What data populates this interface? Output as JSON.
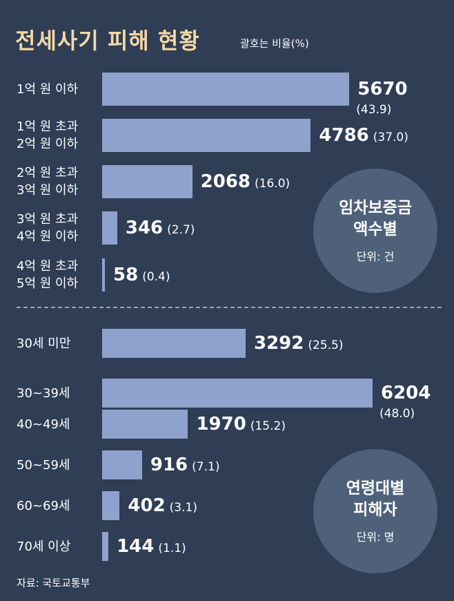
{
  "title": "전세사기 피해 현황",
  "subtitle": "괄호는 비율(%)",
  "source": "자료: 국토교통부",
  "circles": {
    "deposit": {
      "line1": "임차보증금",
      "line2": "액수별",
      "unit": "단위: 건"
    },
    "age": {
      "line1": "연령대별",
      "line2": "피해자",
      "unit": "단위: 명"
    }
  },
  "chart_data": [
    {
      "type": "bar",
      "orientation": "horizontal",
      "title": "임차보증금 액수별",
      "unit": "단위: 건",
      "categories": [
        [
          "1억 원 이하"
        ],
        [
          "1억 원 초과",
          "2억 원 이하"
        ],
        [
          "2억 원 초과",
          "3억 원 이하"
        ],
        [
          "3억 원 초과",
          "4억 원 이하"
        ],
        [
          "4억 원 초과",
          "5억 원 이하"
        ]
      ],
      "values": [
        5670,
        4786,
        2068,
        346,
        58
      ],
      "percent_labels": [
        "(43.9)",
        "(37.0)",
        "(16.0)",
        "(2.7)",
        "(0.4)"
      ]
    },
    {
      "type": "bar",
      "orientation": "horizontal",
      "title": "연령대별 피해자",
      "unit": "단위: 명",
      "categories": [
        [
          "30세 미만"
        ],
        [
          "30~39세"
        ],
        [
          "40~49세"
        ],
        [
          "50~59세"
        ],
        [
          "60~69세"
        ],
        [
          "70세 이상"
        ]
      ],
      "values": [
        3292,
        6204,
        1970,
        916,
        402,
        144
      ],
      "percent_labels": [
        "(25.5)",
        "(48.0)",
        "(15.2)",
        "(7.1)",
        "(3.1)",
        "(1.1)"
      ]
    }
  ]
}
